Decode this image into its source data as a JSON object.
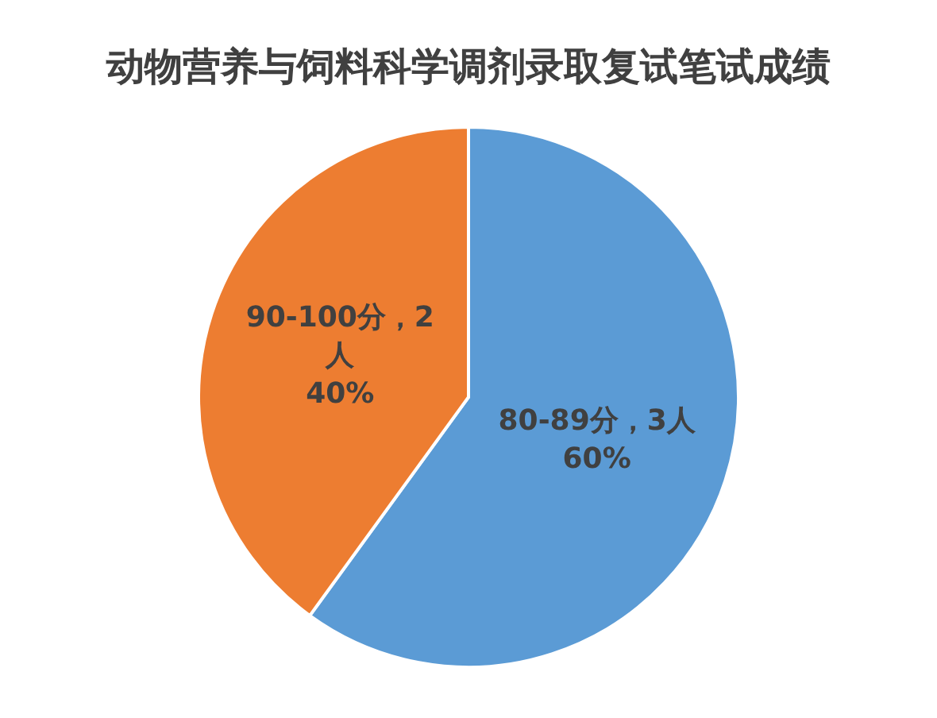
{
  "chart_data": {
    "type": "pie",
    "title": "动物营养与饲料科学调剂录取复试笔试成绩",
    "categories": [
      "80-89分",
      "90-100分"
    ],
    "values": [
      3,
      2
    ],
    "colors": [
      "#5b9bd5",
      "#ed7d31"
    ],
    "value_labels": [
      "3人\n60%",
      "2\n人\n40%"
    ]
  }
}
